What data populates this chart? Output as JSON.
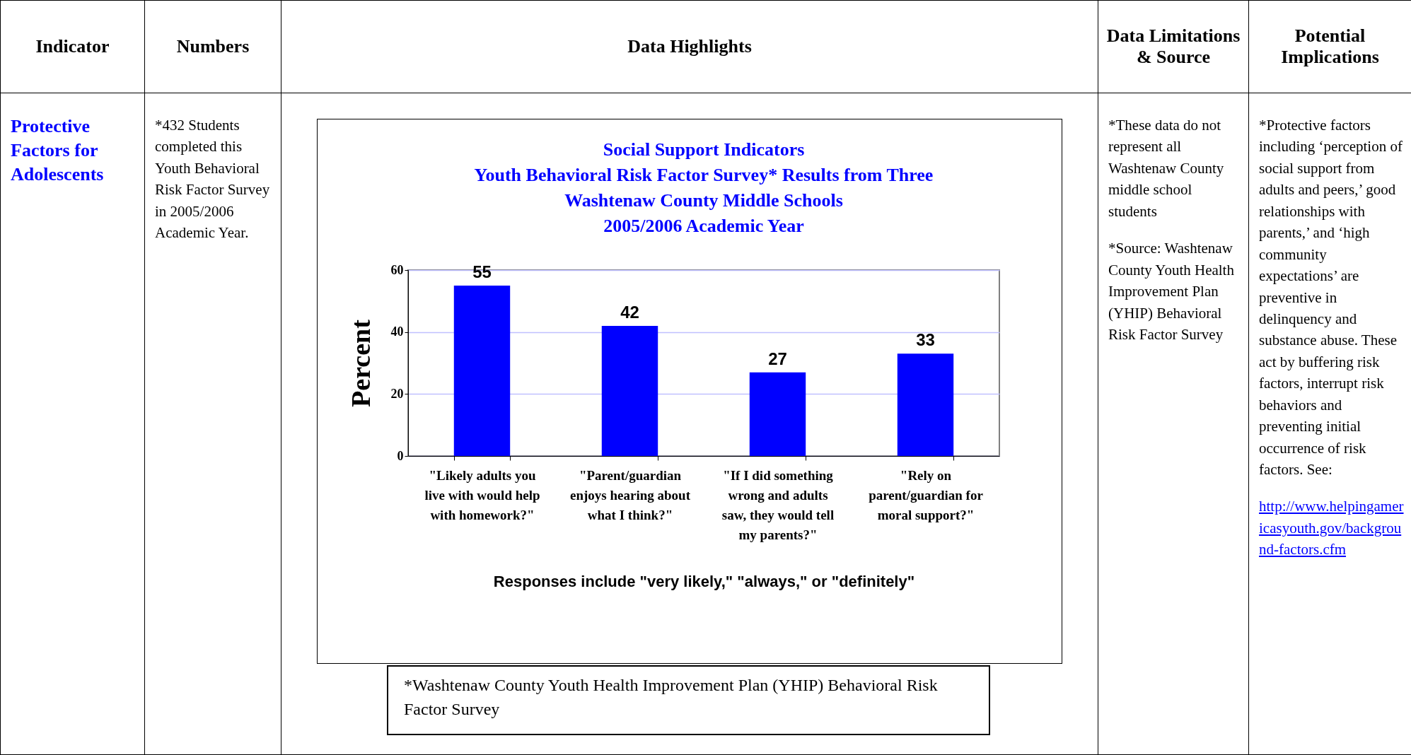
{
  "chart_data": [
    {
      "type": "other",
      "title": "Indicator",
      "annotations": [
        "Protective Factors for Adolescents"
      ]
    },
    {
      "type": "other",
      "title": "Numbers",
      "annotations": [
        "*432 Students completed this Youth Behavioral Risk Factor Survey in 2005/2006 Academic Year."
      ]
    },
    {
      "type": "other",
      "title": "Data Highlights"
    },
    {
      "type": "bar",
      "title": "Social Support Indicators\nYouth Behavioral Risk Factor Survey* Results from Three\nWashtenaw County Middle Schools\n2005/2006 Academic Year",
      "xlabel": "Responses include \"very likely,\" \"always,\" or \"definitely\"",
      "ylabel": "Percent",
      "categories": [
        "\"Likely adults you live with would help with homework?\"",
        "\"Parent/guardian enjoys hearing about what I think?\"",
        "\"If I did something wrong and adults saw, they would tell my parents?\"",
        "\"Rely on parent/guardian for moral support?\""
      ],
      "values": [
        55,
        42,
        27,
        33
      ],
      "color": "#0000ff",
      "data_labels": true,
      "ylim": [
        0,
        60
      ],
      "yticks": [
        0,
        20,
        40,
        60
      ],
      "grid": "y",
      "annotations": [
        "*Washtenaw County Youth Health Improvement Plan (YHIP) Behavioral Risk Factor Survey"
      ]
    },
    {
      "type": "other",
      "title": "Data Limitations & Source",
      "annotations": [
        "*These data do not represent all Washtenaw County middle school students",
        "*Source: Washtenaw County Youth Health Improvement Plan (YHIP) Behavioral Risk Factor Survey"
      ]
    },
    {
      "type": "other",
      "title": "Potential Implications",
      "annotations": [
        "*Protective factors including ‘perception of social support from adults and peers,’ good relationships with parents,’ and ‘high community expectations’ are preventive in delinquency and substance abuse. These act by buffering risk factors, interrupt risk behaviors and preventing initial occurrence of risk factors.  See:",
        "http://www.helpingamericasyouth.gov/background-factors.cfm"
      ]
    }
  ]
}
